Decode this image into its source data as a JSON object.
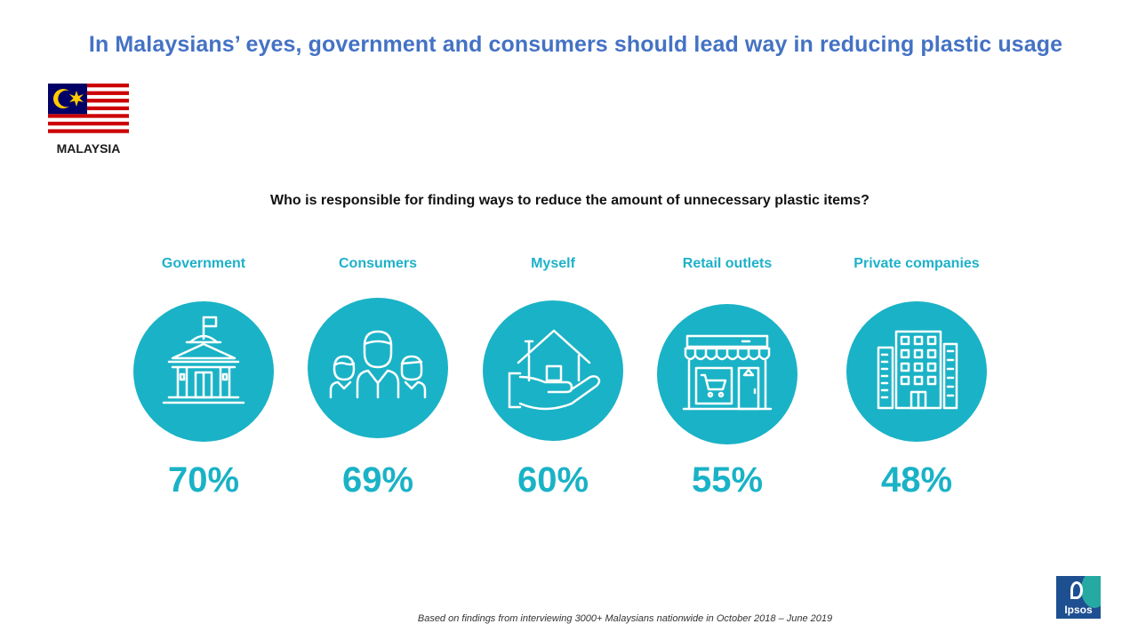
{
  "title": "In Malaysians’ eyes, government and consumers should lead way in reducing plastic usage",
  "country": "MALAYSIA",
  "question": "Who is responsible for finding ways to reduce the amount of  unnecessary plastic items?",
  "footnote": "Based on findings from interviewing 3000+  Malaysians nationwide in October 2018 – June 2019",
  "logo_text": "Ipsos",
  "colors": {
    "title": "#4472C4",
    "accent": "#1AB2C6",
    "logo_blue": "#1D4F91",
    "logo_teal": "#26A9A3"
  },
  "chart_data": {
    "type": "bar",
    "categories": [
      "Government",
      "Consumers",
      "Myself",
      "Retail outlets",
      "Private companies"
    ],
    "values": [
      70,
      69,
      60,
      55,
      48
    ],
    "value_labels": [
      "70%",
      "69%",
      "60%",
      "55%",
      "48%"
    ],
    "icons": [
      "government-building-icon",
      "consumers-people-icon",
      "house-in-hand-icon",
      "retail-store-icon",
      "office-buildings-icon"
    ],
    "title": "Who is responsible for finding ways to reduce the amount of  unnecessary plastic items?",
    "xlabel": "",
    "ylabel": ""
  }
}
